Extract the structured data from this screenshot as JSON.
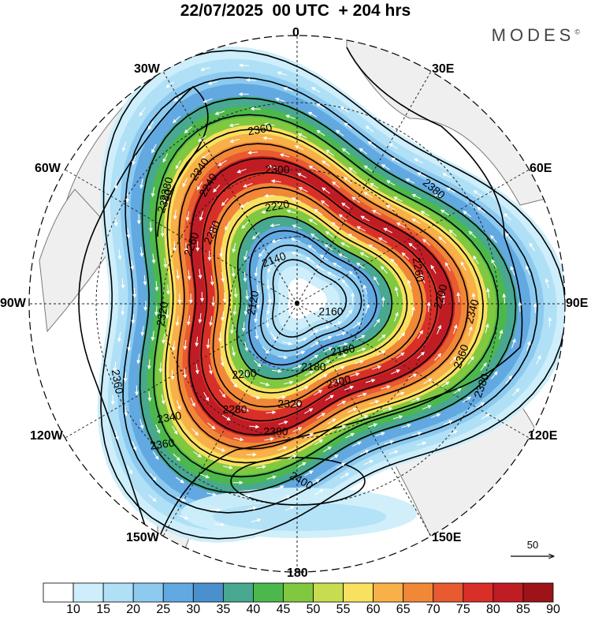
{
  "title": "22/07/2025  00 UTC  + 204 hrs",
  "brand": "MODES",
  "brand_mark": "©",
  "lon_labels": {
    "n0": "0",
    "n30e": "30E",
    "n60e": "60E",
    "n90e": "90E",
    "n120e": "120E",
    "n150e": "150E",
    "n180": "180",
    "n150w": "150W",
    "n120w": "120W",
    "n90w": "90W",
    "n60w": "60W",
    "n30w": "30W"
  },
  "contour_labels": [
    "2360",
    "2380",
    "2340",
    "2300",
    "2220",
    "2280",
    "2260",
    "2240",
    "2140",
    "2120",
    "2320",
    "2200",
    "2180",
    "2160",
    "2400"
  ],
  "ref_vector": {
    "value": "50"
  },
  "colorbar": {
    "ticks": [
      "10",
      "15",
      "20",
      "25",
      "30",
      "35",
      "40",
      "45",
      "50",
      "55",
      "60",
      "65",
      "70",
      "75",
      "80",
      "85",
      "90"
    ],
    "colors": [
      "#ffffff",
      "#cdeefa",
      "#b0e0f6",
      "#8ccaf0",
      "#62a9e2",
      "#4a90cc",
      "#48a890",
      "#4cb84c",
      "#80c840",
      "#c8dc50",
      "#f8e060",
      "#f8b048",
      "#f08838",
      "#e85a30",
      "#d83028",
      "#c01c24",
      "#9c1418"
    ]
  },
  "colors": {
    "coast": "#777777",
    "land": "#eeeeee",
    "contour": "#000000",
    "vector": "#ffffff"
  }
}
